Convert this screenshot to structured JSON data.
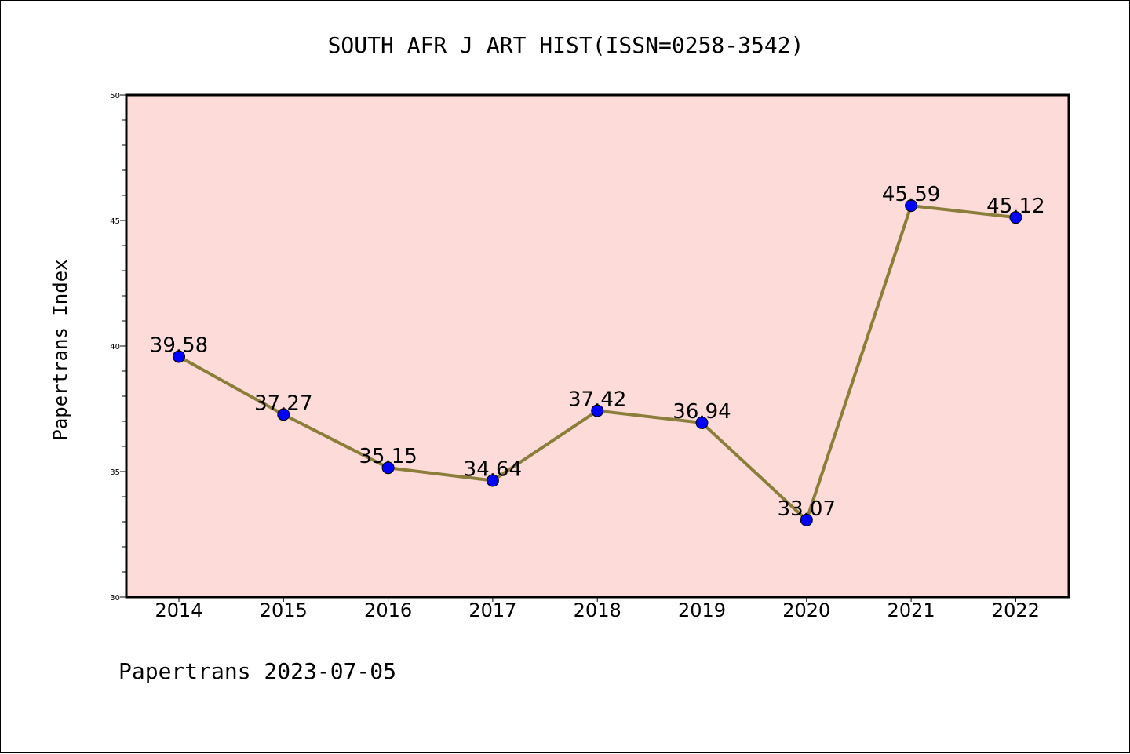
{
  "chart_data": {
    "type": "line",
    "title": "SOUTH AFR J ART HIST(ISSN=0258-3542)",
    "ylabel": "Papertrans Index",
    "xlabel": "",
    "categories": [
      "2014",
      "2015",
      "2016",
      "2017",
      "2018",
      "2019",
      "2020",
      "2021",
      "2022"
    ],
    "series": [
      {
        "values": [
          39.58,
          37.27,
          35.15,
          34.64,
          37.42,
          36.94,
          33.07,
          45.59,
          45.12
        ],
        "labels": [
          "39.58",
          "37.27",
          "35.15",
          "34.64",
          "37.42",
          "36.94",
          "33.07",
          "45.59",
          "45.12"
        ],
        "line_color": "#8b7d3a",
        "marker_color": "#0000ff"
      }
    ],
    "ylim": [
      30,
      50
    ],
    "yticks": [
      "30",
      "35",
      "40",
      "45",
      "50"
    ],
    "plot_background": "#fddbd8",
    "grid": false,
    "legend": "none"
  },
  "footer": {
    "text": "Papertrans 2023-07-05"
  }
}
